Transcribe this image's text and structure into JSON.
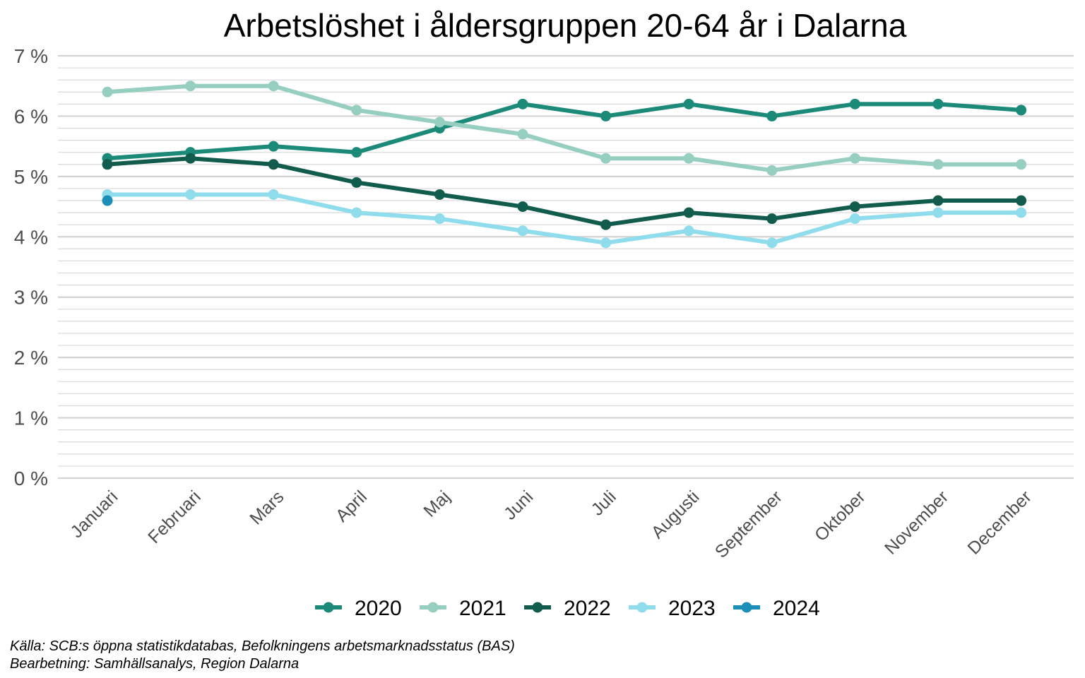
{
  "chart_data": {
    "type": "line",
    "title": "Arbetslöshet i åldersgruppen 20-64 år i Dalarna",
    "xlabel": "",
    "ylabel": "",
    "categories": [
      "Januari",
      "Februari",
      "Mars",
      "April",
      "Maj",
      "Juni",
      "Juli",
      "Augusti",
      "September",
      "Oktober",
      "November",
      "December"
    ],
    "yticks": [
      "0 %",
      "1 %",
      "2 %",
      "3 %",
      "4 %",
      "5 %",
      "6 %",
      "7 %"
    ],
    "ylim": [
      0,
      7
    ],
    "legend_position": "bottom",
    "series": [
      {
        "name": "2020",
        "color": "#1b8a78",
        "values": [
          5.3,
          5.4,
          5.5,
          5.4,
          5.8,
          6.2,
          6.0,
          6.2,
          6.0,
          6.2,
          6.2,
          6.1
        ]
      },
      {
        "name": "2021",
        "color": "#96cfbf",
        "values": [
          6.4,
          6.5,
          6.5,
          6.1,
          5.9,
          5.7,
          5.3,
          5.3,
          5.1,
          5.3,
          5.2,
          5.2
        ]
      },
      {
        "name": "2022",
        "color": "#125c4e",
        "values": [
          5.2,
          5.3,
          5.2,
          4.9,
          4.7,
          4.5,
          4.2,
          4.4,
          4.3,
          4.5,
          4.6,
          4.6
        ]
      },
      {
        "name": "2023",
        "color": "#8fdcec",
        "values": [
          4.7,
          4.7,
          4.7,
          4.4,
          4.3,
          4.1,
          3.9,
          4.1,
          3.9,
          4.3,
          4.4,
          4.4
        ]
      },
      {
        "name": "2024",
        "color": "#1b8fb5",
        "values": [
          4.6,
          null,
          null,
          null,
          null,
          null,
          null,
          null,
          null,
          null,
          null,
          null
        ]
      }
    ],
    "source": [
      "Källa: SCB:s öppna statistikdatabas, Befolkningens arbetsmarknadsstatus (BAS)",
      "Bearbetning: Samhällsanalys, Region Dalarna"
    ]
  }
}
